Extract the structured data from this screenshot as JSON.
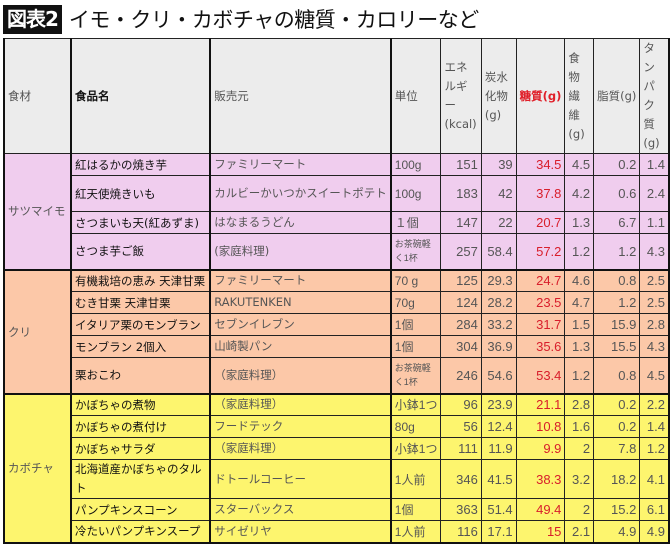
{
  "header": {
    "badge": "図表2",
    "title": "イモ・クリ・カボチャの糖質・カロリーなど"
  },
  "table": {
    "columns": [
      "食材",
      "食品名",
      "販売元",
      "単位",
      "エネルギー(kcal)",
      "炭水化物(g)",
      "糖質(g)",
      "食物繊維(g)",
      "脂質(g)",
      "タンパク質(g)"
    ],
    "column_display": {
      "material": "食材",
      "food": "食品名",
      "vendor": "販売元",
      "unit": "単位",
      "energy": "エネルギー(kcal)",
      "carbs": "炭水化物(g)",
      "sugar": "糖質(g)",
      "fiber": "食物繊維(g)",
      "fat": "脂質(g)",
      "protein": "タンパク質(g)"
    },
    "groups": [
      {
        "category": "サツマイモ",
        "color": "#f0cdee",
        "rows": [
          {
            "food": "紅はるかの焼き芋",
            "vendor": "ファミリーマート",
            "unit": "100g",
            "energy": "151",
            "carbs": "39",
            "sugar": "34.5",
            "fiber": "4.5",
            "fat": "0.2",
            "protein": "1.4"
          },
          {
            "food": "紅天使焼きいも",
            "vendor": "カルビーかいつかスイートポテト",
            "unit": "100g",
            "energy": "183",
            "carbs": "42",
            "sugar": "37.8",
            "fiber": "4.2",
            "fat": "0.6",
            "protein": "2.4"
          },
          {
            "food": "さつまいも天(紅あずま)",
            "vendor": "はなまるうどん",
            "unit": "１個",
            "energy": "147",
            "carbs": "22",
            "sugar": "20.7",
            "fiber": "1.3",
            "fat": "6.7",
            "protein": "1.1"
          },
          {
            "food": "さつま芋ご飯",
            "vendor": "(家庭料理)",
            "unit": "お茶碗軽く1杯",
            "energy": "257",
            "carbs": "58.4",
            "sugar": "57.2",
            "fiber": "1.2",
            "fat": "1.2",
            "protein": "4.3"
          }
        ]
      },
      {
        "category": "クリ",
        "color": "#fcc8a8",
        "rows": [
          {
            "food": "有機栽培の恵み 天津甘栗",
            "vendor": "ファミリーマート",
            "unit": "70 g",
            "energy": "125",
            "carbs": "29.3",
            "sugar": "24.7",
            "fiber": "4.6",
            "fat": "0.8",
            "protein": "2.5"
          },
          {
            "food": "むき甘栗 天津甘栗",
            "vendor": "RAKUTENKEN",
            "unit": "70g",
            "energy": "124",
            "carbs": "28.2",
            "sugar": "23.5",
            "fiber": "4.7",
            "fat": "1.2",
            "protein": "2.5"
          },
          {
            "food": "イタリア栗のモンブラン",
            "vendor": "セブンイレブン",
            "unit": "1個",
            "energy": "284",
            "carbs": "33.2",
            "sugar": "31.7",
            "fiber": "1.5",
            "fat": "15.9",
            "protein": "2.8"
          },
          {
            "food": "モンブラン 2個入",
            "vendor": "山崎製パン",
            "unit": "1個",
            "energy": "304",
            "carbs": "36.9",
            "sugar": "35.6",
            "fiber": "1.3",
            "fat": "15.5",
            "protein": "4.3"
          },
          {
            "food": "栗おこわ",
            "vendor": "（家庭料理）",
            "unit": "お茶碗軽く1杯",
            "energy": "246",
            "carbs": "54.6",
            "sugar": "53.4",
            "fiber": "1.2",
            "fat": "0.8",
            "protein": "4.5"
          }
        ]
      },
      {
        "category": "カボチャ",
        "color": "#fdf56e",
        "rows": [
          {
            "food": "かぼちゃの煮物",
            "vendor": "（家庭料理）",
            "unit": "小鉢1つ",
            "energy": "96",
            "carbs": "23.9",
            "sugar": "21.1",
            "fiber": "2.8",
            "fat": "0.2",
            "protein": "2.2"
          },
          {
            "food": "かぼちゃの煮付け",
            "vendor": "フードテック",
            "unit": "80g",
            "energy": "56",
            "carbs": "12.4",
            "sugar": "10.8",
            "fiber": "1.6",
            "fat": "0.2",
            "protein": "1.4"
          },
          {
            "food": "かぼちゃサラダ",
            "vendor": "（家庭料理）",
            "unit": "小鉢1つ",
            "energy": "111",
            "carbs": "11.9",
            "sugar": "9.9",
            "fiber": "2",
            "fat": "7.8",
            "protein": "1.2"
          },
          {
            "food": "北海道産かぼちゃのタルト",
            "vendor": "ドトールコーヒー",
            "unit": "1人前",
            "energy": "346",
            "carbs": "41.5",
            "sugar": "38.3",
            "fiber": "3.2",
            "fat": "18.2",
            "protein": "4.1"
          },
          {
            "food": "パンプキンスコーン",
            "vendor": "スターバックス",
            "unit": "1個",
            "energy": "363",
            "carbs": "51.4",
            "sugar": "49.4",
            "fiber": "2",
            "fat": "15.2",
            "protein": "6.1"
          },
          {
            "food": "冷たいパンプキンスープ",
            "vendor": "サイゼリヤ",
            "unit": "1人前",
            "energy": "116",
            "carbs": "17.1",
            "sugar": "15",
            "fiber": "2.1",
            "fat": "4.9",
            "protein": "4.9"
          }
        ]
      }
    ]
  },
  "colors": {
    "header_bg": "#ececec",
    "sugar_text": "#d81e2b",
    "satsumaimo_bg": "#f0cdee",
    "kuri_bg": "#fcc8a8",
    "kabocha_bg": "#fdf56e"
  }
}
